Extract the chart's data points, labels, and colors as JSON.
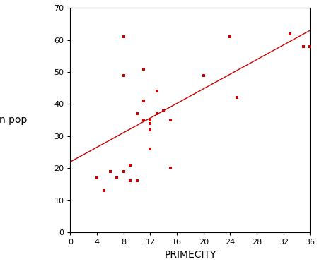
{
  "scatter_x": [
    4,
    5,
    6,
    7,
    8,
    8,
    8,
    9,
    9,
    10,
    10,
    11,
    11,
    11,
    12,
    12,
    12,
    12,
    13,
    13,
    14,
    15,
    15,
    20,
    24,
    25,
    33,
    35,
    36
  ],
  "scatter_y": [
    17,
    13,
    19,
    17,
    61,
    49,
    19,
    16,
    21,
    37,
    16,
    35,
    41,
    51,
    35,
    34,
    26,
    32,
    37,
    44,
    38,
    35,
    20,
    49,
    61,
    42,
    62,
    58,
    58
  ],
  "line_x": [
    0,
    36
  ],
  "line_y": [
    22,
    63
  ],
  "scatter_color": "#cc0000",
  "line_color": "#cc0000",
  "xlabel": "PRIMECITY",
  "ylabel": "urban pop",
  "xlim": [
    0,
    36
  ],
  "ylim": [
    0,
    70
  ],
  "xticks": [
    0,
    4,
    8,
    12,
    16,
    20,
    24,
    28,
    32,
    36
  ],
  "yticks": [
    0,
    10,
    20,
    30,
    40,
    50,
    60,
    70
  ],
  "marker": "s",
  "marker_size": 3,
  "line_width": 1.0,
  "figsize": [
    4.52,
    3.74
  ],
  "dpi": 100
}
